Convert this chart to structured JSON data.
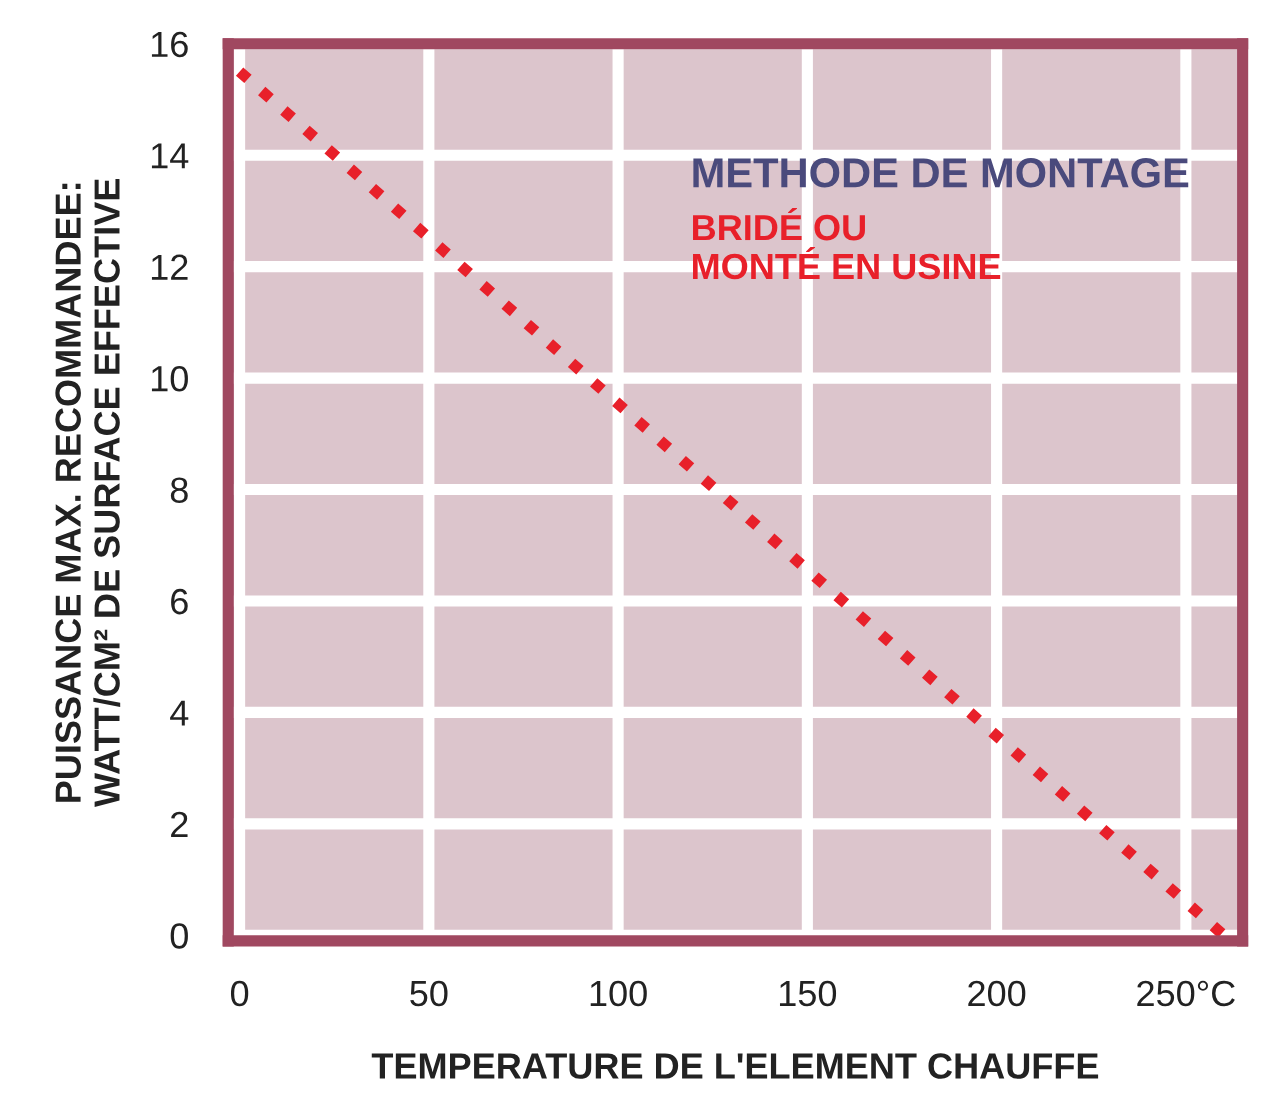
{
  "chart_data": {
    "type": "line",
    "xlabel": "TEMPERATURE DE L'ELEMENT CHAUFFE",
    "ylabel": "PUISSANCE MAX. RECOMMANDEE:\nWATT/CM² DE SURFACE EFFECTIVE",
    "legend_title": "METHODE DE MONTAGE",
    "x": [
      0,
      260
    ],
    "series": [
      {
        "name": "BRIDÉ OU\nMONTÉ EN USINE",
        "color": "#e8202a",
        "values": [
          15.5,
          0
        ]
      }
    ],
    "xlim": [
      -3,
      265
    ],
    "ylim": [
      -0.1,
      16
    ],
    "xticks": [
      0,
      50,
      100,
      150,
      200,
      {
        "value": 250,
        "label": "250°C"
      }
    ],
    "yticks": [
      0,
      2,
      4,
      6,
      8,
      10,
      12,
      14,
      16
    ],
    "grid": true,
    "legend": "top right",
    "line_style": "dotted",
    "marker": "none"
  }
}
